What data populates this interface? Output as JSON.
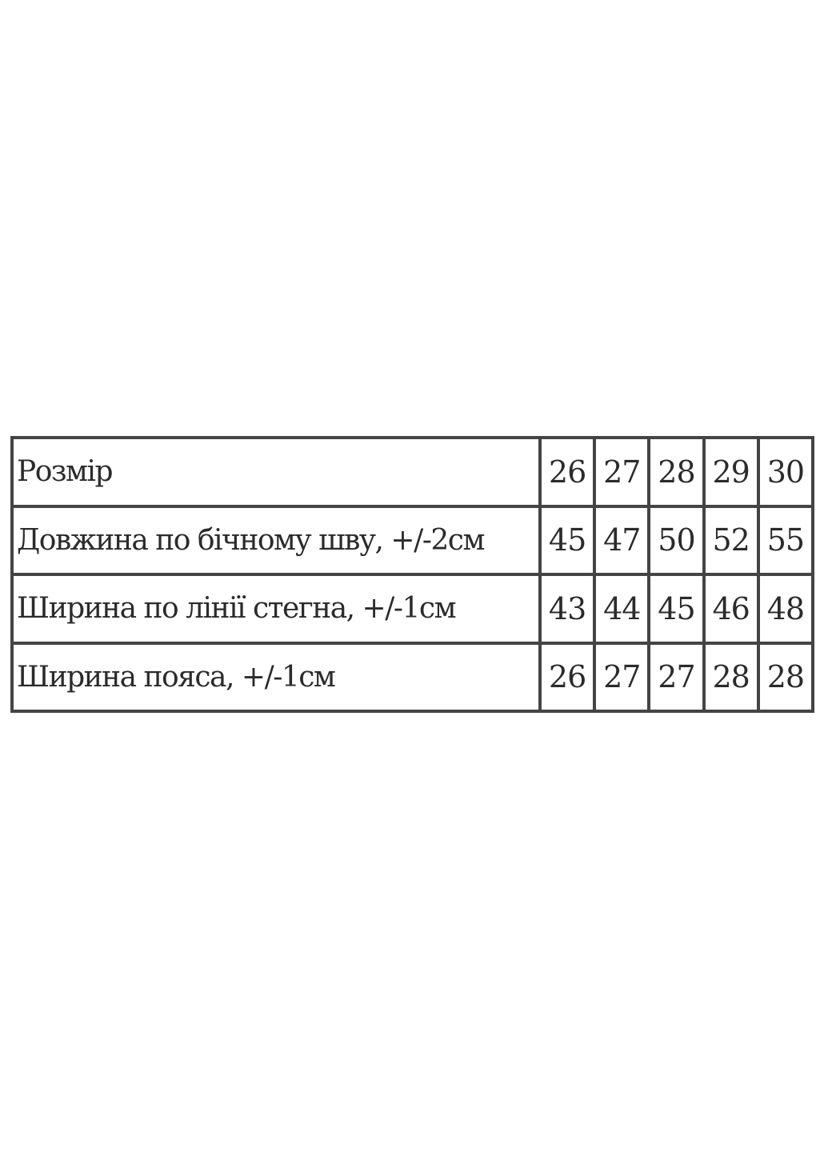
{
  "size_table": {
    "rows": [
      {
        "label": "Розмір",
        "values": [
          "26",
          "27",
          "28",
          "29",
          "30"
        ]
      },
      {
        "label": "Довжина по бічному шву, +/-2см",
        "values": [
          "45",
          "47",
          "50",
          "52",
          "55"
        ]
      },
      {
        "label": "Ширина по лінії стегна, +/-1см",
        "values": [
          "43",
          "44",
          "45",
          "46",
          "48"
        ]
      },
      {
        "label": "Ширина пояса, +/-1см",
        "values": [
          "26",
          "27",
          "27",
          "28",
          "28"
        ]
      }
    ]
  }
}
